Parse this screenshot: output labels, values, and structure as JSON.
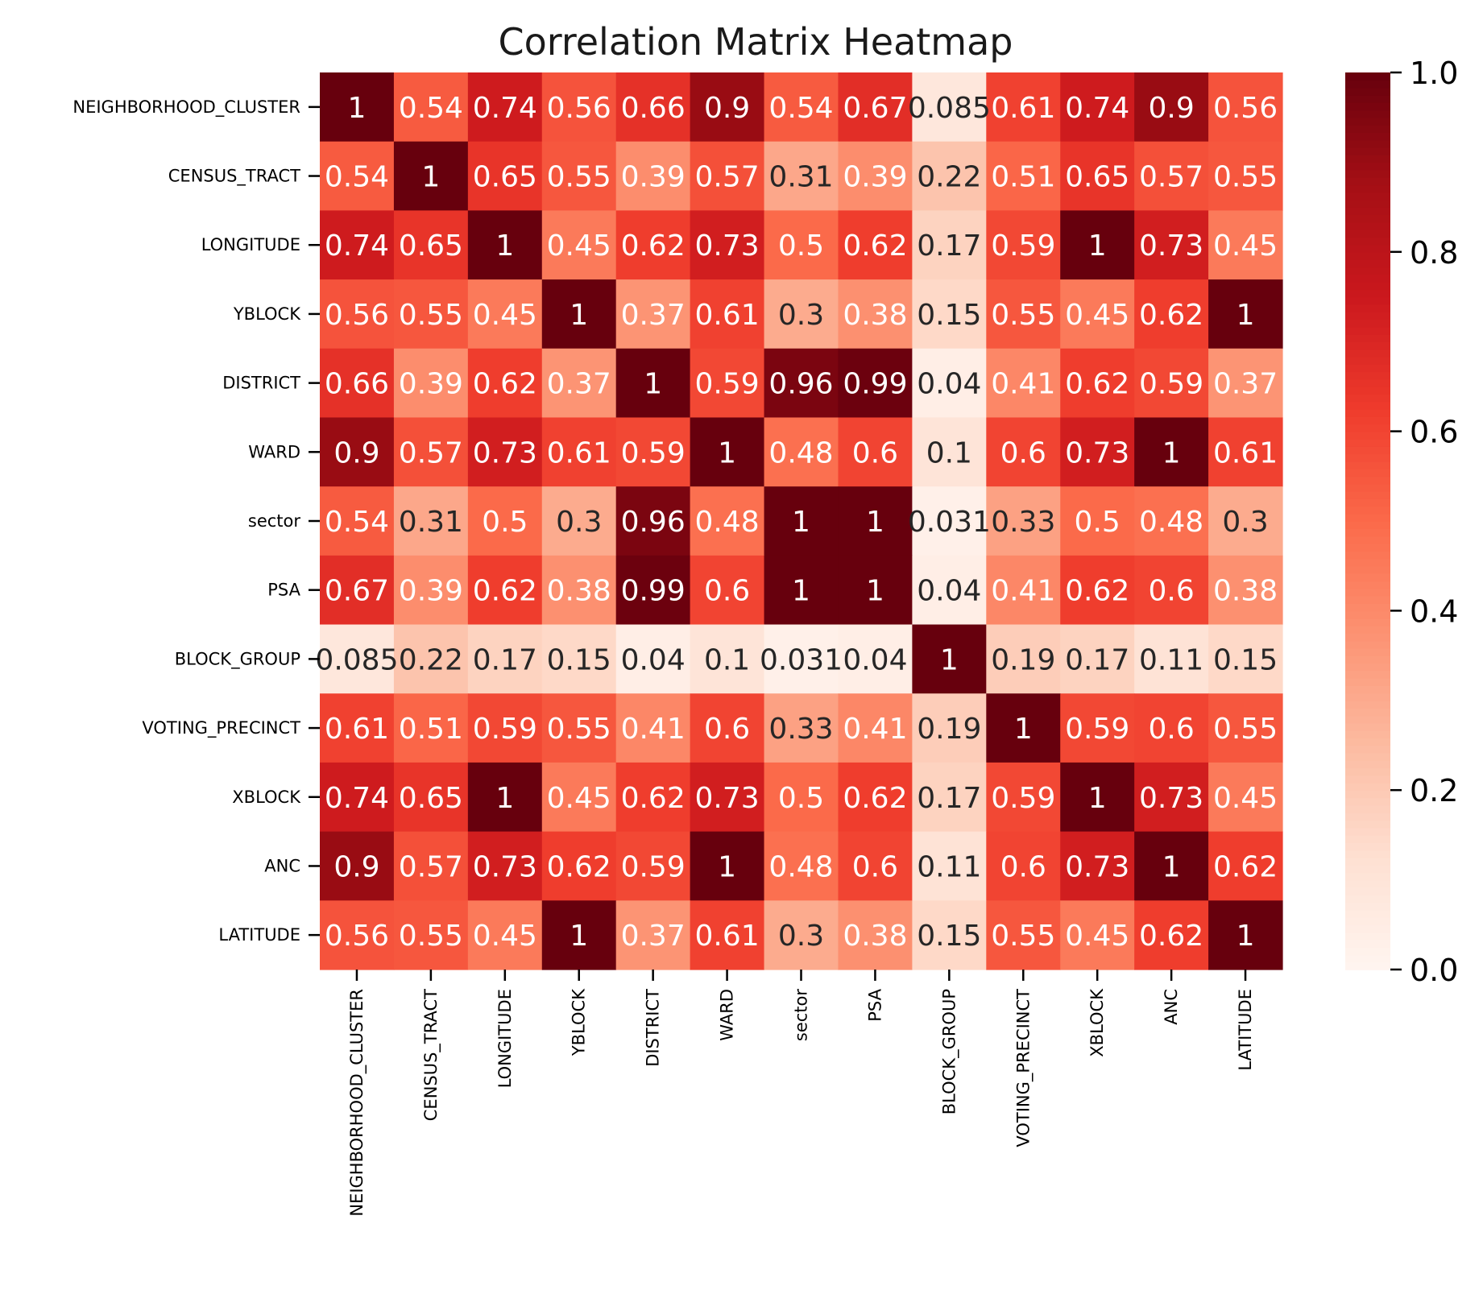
{
  "chart_data": {
    "type": "heatmap",
    "title": "Correlation Matrix Heatmap",
    "labels": [
      "NEIGHBORHOOD_CLUSTER",
      "CENSUS_TRACT",
      "LONGITUDE",
      "YBLOCK",
      "DISTRICT",
      "WARD",
      "sector",
      "PSA",
      "BLOCK_GROUP",
      "VOTING_PRECINCT",
      "XBLOCK",
      "ANC",
      "LATITUDE"
    ],
    "cell_text": [
      [
        "1",
        "0.54",
        "0.74",
        "0.56",
        "0.66",
        "0.9",
        "0.54",
        "0.67",
        "0.085",
        "0.61",
        "0.74",
        "0.9",
        "0.56"
      ],
      [
        "0.54",
        "1",
        "0.65",
        "0.55",
        "0.39",
        "0.57",
        "0.31",
        "0.39",
        "0.22",
        "0.51",
        "0.65",
        "0.57",
        "0.55"
      ],
      [
        "0.74",
        "0.65",
        "1",
        "0.45",
        "0.62",
        "0.73",
        "0.5",
        "0.62",
        "0.17",
        "0.59",
        "1",
        "0.73",
        "0.45"
      ],
      [
        "0.56",
        "0.55",
        "0.45",
        "1",
        "0.37",
        "0.61",
        "0.3",
        "0.38",
        "0.15",
        "0.55",
        "0.45",
        "0.62",
        "1"
      ],
      [
        "0.66",
        "0.39",
        "0.62",
        "0.37",
        "1",
        "0.59",
        "0.96",
        "0.99",
        "0.04",
        "0.41",
        "0.62",
        "0.59",
        "0.37"
      ],
      [
        "0.9",
        "0.57",
        "0.73",
        "0.61",
        "0.59",
        "1",
        "0.48",
        "0.6",
        "0.1",
        "0.6",
        "0.73",
        "1",
        "0.61"
      ],
      [
        "0.54",
        "0.31",
        "0.5",
        "0.3",
        "0.96",
        "0.48",
        "1",
        "1",
        "0.031",
        "0.33",
        "0.5",
        "0.48",
        "0.3"
      ],
      [
        "0.67",
        "0.39",
        "0.62",
        "0.38",
        "0.99",
        "0.6",
        "1",
        "1",
        "0.04",
        "0.41",
        "0.62",
        "0.6",
        "0.38"
      ],
      [
        "0.085",
        "0.22",
        "0.17",
        "0.15",
        "0.04",
        "0.1",
        "0.031",
        "0.04",
        "1",
        "0.19",
        "0.17",
        "0.11",
        "0.15"
      ],
      [
        "0.61",
        "0.51",
        "0.59",
        "0.55",
        "0.41",
        "0.6",
        "0.33",
        "0.41",
        "0.19",
        "1",
        "0.59",
        "0.6",
        "0.55"
      ],
      [
        "0.74",
        "0.65",
        "1",
        "0.45",
        "0.62",
        "0.73",
        "0.5",
        "0.62",
        "0.17",
        "0.59",
        "1",
        "0.73",
        "0.45"
      ],
      [
        "0.9",
        "0.57",
        "0.73",
        "0.62",
        "0.59",
        "1",
        "0.48",
        "0.6",
        "0.11",
        "0.6",
        "0.73",
        "1",
        "0.62"
      ],
      [
        "0.56",
        "0.55",
        "0.45",
        "1",
        "0.37",
        "0.61",
        "0.3",
        "0.38",
        "0.15",
        "0.55",
        "0.45",
        "0.62",
        "1"
      ]
    ],
    "colorbar": {
      "min": 0.0,
      "max": 1.0,
      "ticks": [
        0.0,
        0.2,
        0.4,
        0.6,
        0.8,
        1.0
      ],
      "tick_labels": [
        "0.0",
        "0.2",
        "0.4",
        "0.6",
        "0.8",
        "1.0"
      ]
    },
    "colormap": "Reds",
    "colormap_stops": [
      "#fff5f0",
      "#fee0d2",
      "#fcbba1",
      "#fc9272",
      "#fb6a4a",
      "#ef3b2c",
      "#cb181d",
      "#a50f15",
      "#67000d"
    ],
    "text_color_light": "#ffffff",
    "text_color_dark": "#262626",
    "grid": false,
    "legend": "colorbar-right"
  }
}
